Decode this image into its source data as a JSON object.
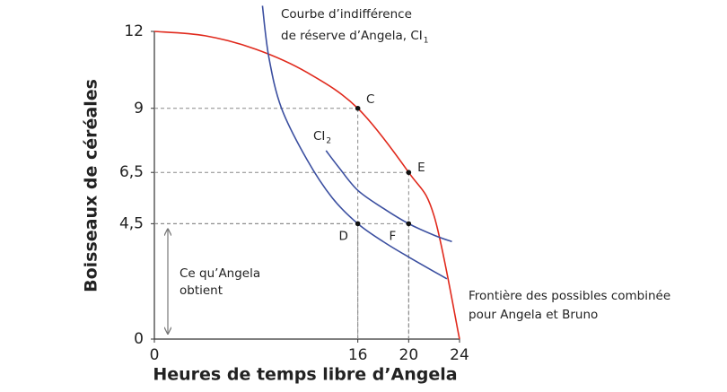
{
  "chart_data": {
    "type": "line",
    "x_label": "Heures de temps libre d’Angela",
    "y_label": "Boisseaux de céréales",
    "xlim": [
      0,
      24
    ],
    "ylim": [
      0,
      12
    ],
    "xticks": [
      0,
      16,
      20,
      24
    ],
    "yticks": [
      0,
      {
        "value": 4.5,
        "label": "4,5"
      },
      {
        "value": 6.5,
        "label": "6,5"
      },
      9,
      12
    ],
    "series": [
      {
        "color": "#e0291c",
        "x": [
          0,
          4,
          8,
          12,
          16,
          20,
          22,
          24
        ],
        "values": [
          12,
          11.83,
          11.3,
          10.4,
          9,
          6.5,
          4.8,
          0
        ]
      },
      {
        "color": "#3b4fa0",
        "x": [
          8.5,
          9,
          10,
          12,
          14,
          16,
          18,
          20,
          23
        ],
        "values": [
          13,
          11,
          9,
          7,
          5.5,
          4.5,
          3.8,
          3.2,
          2.35
        ]
      },
      {
        "color": "#3b4fa0",
        "x": [
          13.5,
          14.5,
          16,
          18,
          20,
          22,
          23.4
        ],
        "values": [
          7.35,
          6.7,
          5.8,
          5.1,
          4.5,
          4.05,
          3.8
        ]
      }
    ],
    "points": [
      {
        "label": "C",
        "x": 16,
        "y": 9
      },
      {
        "label": "D",
        "x": 16,
        "y": 4.5
      },
      {
        "label": "E",
        "x": 20,
        "y": 6.5
      },
      {
        "label": "F",
        "x": 20,
        "y": 4.5
      }
    ],
    "annotations": {
      "ci1": [
        "Courbe d’indifférence",
        "de réserve d’Angela, CI"
      ],
      "ci1_sub": "1",
      "ci2": "CI",
      "ci2_sub": "2",
      "frontier": [
        "Frontière des possibles combinée",
        "pour Angela et Bruno"
      ],
      "gets": [
        "Ce qu’Angela",
        "obtient"
      ]
    }
  }
}
